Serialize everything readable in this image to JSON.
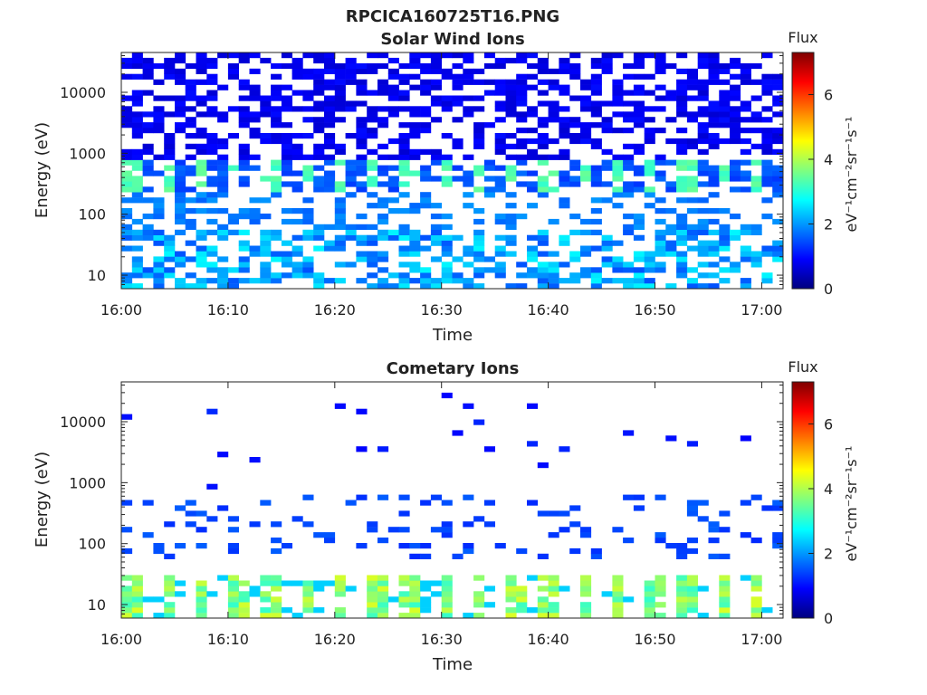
{
  "figure": {
    "filename_title": "RPCICA160725T16.PNG"
  },
  "colormap": [
    "#00007f",
    "#0000ff",
    "#007fff",
    "#00ffff",
    "#7fff7f",
    "#ffff00",
    "#ff7f00",
    "#ff0000",
    "#7f0000"
  ],
  "chart_data": [
    {
      "type": "heatmap",
      "title": "Solar Wind Ions",
      "xlabel": "Time",
      "ylabel": "Energy (eV)",
      "y_scale": "log",
      "ylim": [
        6,
        45000
      ],
      "xlim": [
        "16:00",
        "17:02"
      ],
      "x_ticks": [
        "16:00",
        "16:10",
        "16:20",
        "16:30",
        "16:40",
        "16:50",
        "17:00"
      ],
      "y_ticks": [
        {
          "value": 10,
          "label": "10"
        },
        {
          "value": 100,
          "label": "100"
        },
        {
          "value": 1000,
          "label": "1000"
        },
        {
          "value": 10000,
          "label": "10000"
        }
      ],
      "colorbar": {
        "title": "Flux",
        "units": "eV⁻¹cm⁻²sr⁻¹s⁻¹",
        "range": [
          0,
          7.3
        ],
        "ticks": [
          0,
          2,
          4,
          6
        ]
      },
      "pattern": {
        "time_step_min": 1.0,
        "low_energy_band_eV": [
          6,
          60
        ],
        "low_band_flux": 2.7,
        "mid_band_eV": [
          70,
          250
        ],
        "mid_band_flux": 1.6,
        "peak_band_eV": [
          300,
          800
        ],
        "peak_flux": 3.1,
        "peak_period_min": 3.25,
        "high_band_eV": [
          800,
          45000
        ],
        "high_band_flux": 0.6
      }
    },
    {
      "type": "heatmap",
      "title": "Cometary Ions",
      "xlabel": "Time",
      "ylabel": "Energy (eV)",
      "y_scale": "log",
      "ylim": [
        6,
        45000
      ],
      "xlim": [
        "16:00",
        "17:02"
      ],
      "x_ticks": [
        "16:00",
        "16:10",
        "16:20",
        "16:30",
        "16:40",
        "16:50",
        "17:00"
      ],
      "y_ticks": [
        {
          "value": 10,
          "label": "10"
        },
        {
          "value": 100,
          "label": "100"
        },
        {
          "value": 1000,
          "label": "1000"
        },
        {
          "value": 10000,
          "label": "10000"
        }
      ],
      "colorbar": {
        "title": "Flux",
        "units": "eV⁻¹cm⁻²sr⁻¹s⁻¹",
        "range": [
          0,
          7.3
        ],
        "ticks": [
          0,
          2,
          4,
          6
        ]
      },
      "pattern": {
        "time_step_min": 1.0,
        "low_energy_band_eV": [
          6,
          30
        ],
        "low_band_flux": 4.3,
        "low_band_period_min": 3.25,
        "mid_band_eV": [
          60,
          700
        ],
        "mid_band_flux": 1.2,
        "high_band_eV": [
          800,
          30000
        ],
        "high_band_flux": 0.9
      }
    }
  ]
}
